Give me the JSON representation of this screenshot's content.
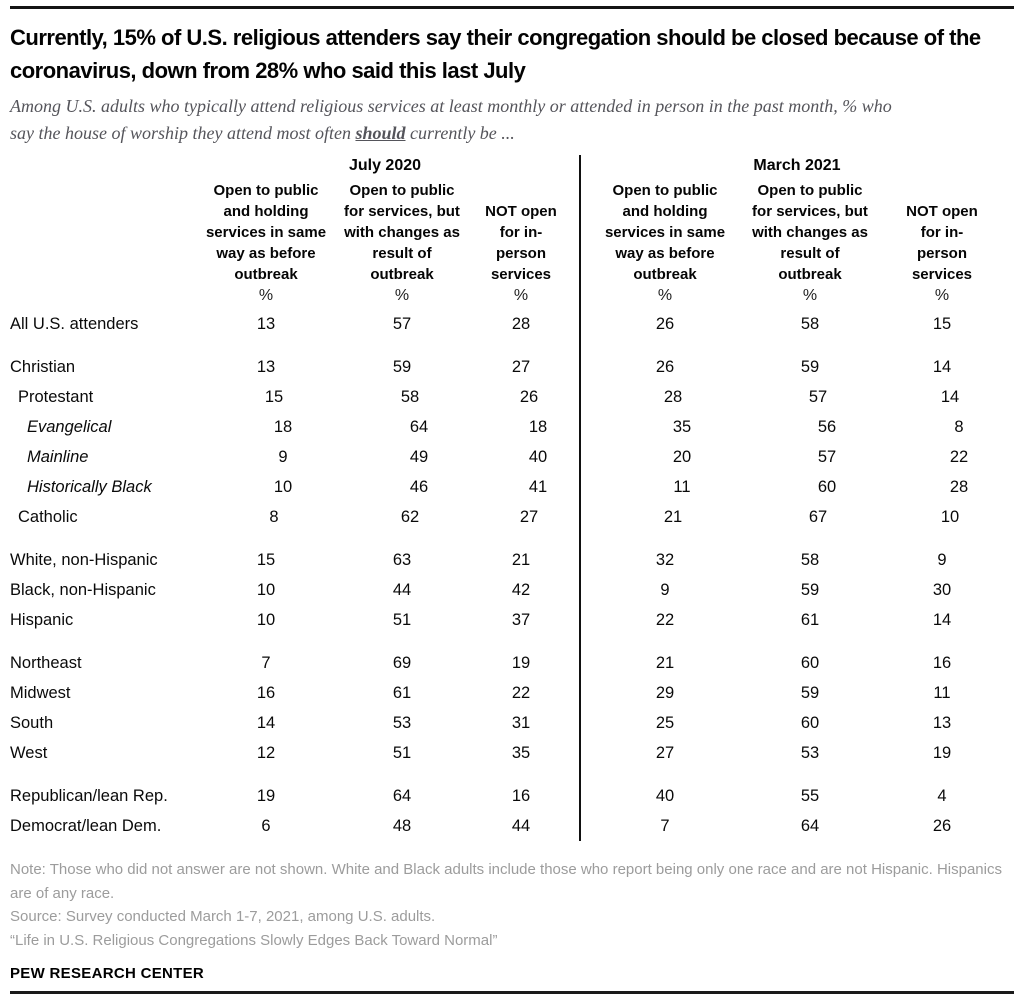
{
  "colors": {
    "rule": "#141414",
    "subtitle_gray": "#55555b",
    "note_gray": "#9c9c9c",
    "text": "#0a0a0a"
  },
  "header": {
    "title": "Currently, 15% of U.S. religious attenders say their congregation should be closed because of the coronavirus, down from 28% who said this last July",
    "subtitle_part1": "Among U.S. adults who typically attend religious services at least monthly or attended in person in the past month, % who say the house of worship they attend most often ",
    "subtitle_emphasis": "should",
    "subtitle_part2": " currently be ..."
  },
  "table": {
    "group_headers": [
      "July 2020",
      "March 2021"
    ],
    "col_headers": [
      "Open to public and holding services in same way as before outbreak",
      "Open to public for services, but with changes as result of outbreak",
      "NOT open for in-person services"
    ],
    "unit": "%",
    "rows": [
      {
        "label": "All U.S. attenders",
        "indent": 0,
        "italic": false,
        "gap": false,
        "july": [
          13,
          57,
          28
        ],
        "march": [
          26,
          58,
          15
        ]
      },
      {
        "label": "Christian",
        "indent": 0,
        "italic": false,
        "gap": true,
        "july": [
          13,
          59,
          27
        ],
        "march": [
          26,
          59,
          14
        ]
      },
      {
        "label": "Protestant",
        "indent": 1,
        "italic": false,
        "gap": false,
        "july": [
          15,
          58,
          26
        ],
        "march": [
          28,
          57,
          14
        ]
      },
      {
        "label": "Evangelical",
        "indent": 2,
        "italic": true,
        "gap": false,
        "july": [
          18,
          64,
          18
        ],
        "march": [
          35,
          56,
          8
        ]
      },
      {
        "label": "Mainline",
        "indent": 2,
        "italic": true,
        "gap": false,
        "july": [
          9,
          49,
          40
        ],
        "march": [
          20,
          57,
          22
        ]
      },
      {
        "label": "Historically Black",
        "indent": 2,
        "italic": true,
        "gap": false,
        "july": [
          10,
          46,
          41
        ],
        "march": [
          11,
          60,
          28
        ]
      },
      {
        "label": "Catholic",
        "indent": 1,
        "italic": false,
        "gap": false,
        "july": [
          8,
          62,
          27
        ],
        "march": [
          21,
          67,
          10
        ]
      },
      {
        "label": "White, non-Hispanic",
        "indent": 0,
        "italic": false,
        "gap": true,
        "july": [
          15,
          63,
          21
        ],
        "march": [
          32,
          58,
          9
        ]
      },
      {
        "label": "Black, non-Hispanic",
        "indent": 0,
        "italic": false,
        "gap": false,
        "july": [
          10,
          44,
          42
        ],
        "march": [
          9,
          59,
          30
        ]
      },
      {
        "label": "Hispanic",
        "indent": 0,
        "italic": false,
        "gap": false,
        "july": [
          10,
          51,
          37
        ],
        "march": [
          22,
          61,
          14
        ]
      },
      {
        "label": "Northeast",
        "indent": 0,
        "italic": false,
        "gap": true,
        "july": [
          7,
          69,
          19
        ],
        "march": [
          21,
          60,
          16
        ]
      },
      {
        "label": "Midwest",
        "indent": 0,
        "italic": false,
        "gap": false,
        "july": [
          16,
          61,
          22
        ],
        "march": [
          29,
          59,
          11
        ]
      },
      {
        "label": "South",
        "indent": 0,
        "italic": false,
        "gap": false,
        "july": [
          14,
          53,
          31
        ],
        "march": [
          25,
          60,
          13
        ]
      },
      {
        "label": "West",
        "indent": 0,
        "italic": false,
        "gap": false,
        "july": [
          12,
          51,
          35
        ],
        "march": [
          27,
          53,
          19
        ]
      },
      {
        "label": "Republican/lean Rep.",
        "indent": 0,
        "italic": false,
        "gap": true,
        "july": [
          19,
          64,
          16
        ],
        "march": [
          40,
          55,
          4
        ]
      },
      {
        "label": "Democrat/lean Dem.",
        "indent": 0,
        "italic": false,
        "gap": false,
        "july": [
          6,
          48,
          44
        ],
        "march": [
          7,
          64,
          26
        ]
      }
    ]
  },
  "footer": {
    "note": "Note: Those who did not answer are not shown. White and Black adults include those who report being only one race and are not Hispanic. Hispanics are of any race.",
    "source": "Source: Survey conducted March 1-7, 2021, among U.S. adults.",
    "report": "“Life in U.S. Religious Congregations Slowly Edges Back Toward Normal”",
    "brand": "PEW RESEARCH CENTER"
  },
  "chart_data": {
    "type": "table",
    "title": "Currently, 15% of U.S. religious attenders say their congregation should be closed because of the coronavirus, down from 28% who said this last July",
    "subtitle": "Among U.S. adults who typically attend religious services at least monthly or attended in person in the past month, % who say the house of worship they attend most often should currently be ...",
    "unit": "%",
    "categories": [
      "All U.S. attenders",
      "Christian",
      "Protestant",
      "Evangelical",
      "Mainline",
      "Historically Black",
      "Catholic",
      "White, non-Hispanic",
      "Black, non-Hispanic",
      "Hispanic",
      "Northeast",
      "Midwest",
      "South",
      "West",
      "Republican/lean Rep.",
      "Democrat/lean Dem."
    ],
    "column_groups": [
      "July 2020",
      "March 2021"
    ],
    "series": [
      {
        "name": "July 2020 - Open to public and holding services in same way as before outbreak",
        "values": [
          13,
          13,
          15,
          18,
          9,
          10,
          8,
          15,
          10,
          10,
          7,
          16,
          14,
          12,
          19,
          6
        ]
      },
      {
        "name": "July 2020 - Open to public for services, but with changes as result of outbreak",
        "values": [
          57,
          59,
          58,
          64,
          49,
          46,
          62,
          63,
          44,
          51,
          69,
          61,
          53,
          51,
          64,
          48
        ]
      },
      {
        "name": "July 2020 - NOT open for in-person services",
        "values": [
          28,
          27,
          26,
          18,
          40,
          41,
          27,
          21,
          42,
          37,
          19,
          22,
          31,
          35,
          16,
          44
        ]
      },
      {
        "name": "March 2021 - Open to public and holding services in same way as before outbreak",
        "values": [
          26,
          26,
          28,
          35,
          20,
          11,
          21,
          32,
          9,
          22,
          21,
          29,
          25,
          27,
          40,
          7
        ]
      },
      {
        "name": "March 2021 - Open to public for services, but with changes as result of outbreak",
        "values": [
          58,
          59,
          57,
          56,
          57,
          60,
          67,
          58,
          59,
          61,
          60,
          59,
          60,
          53,
          55,
          64
        ]
      },
      {
        "name": "March 2021 - NOT open for in-person services",
        "values": [
          15,
          14,
          14,
          8,
          22,
          28,
          10,
          9,
          30,
          14,
          16,
          11,
          13,
          19,
          4,
          26
        ]
      }
    ]
  }
}
